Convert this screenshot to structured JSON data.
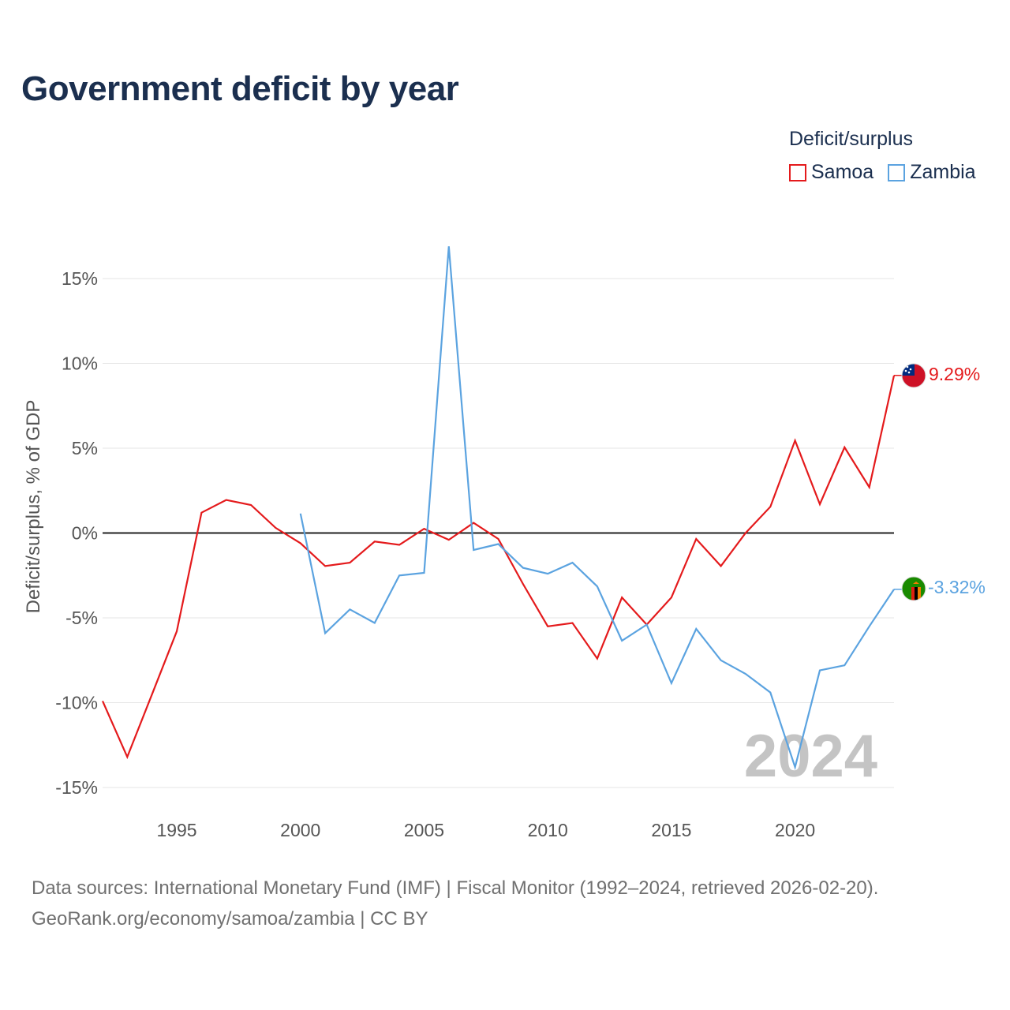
{
  "title": "Government deficit by year",
  "legend": {
    "title": "Deficit/surplus",
    "items": [
      {
        "label": "Samoa",
        "color": "#e41a1c"
      },
      {
        "label": "Zambia",
        "color": "#5ba3e0"
      }
    ]
  },
  "chart_data": {
    "type": "line",
    "title": "Government deficit by year",
    "ylabel": "Deficit/surplus, % of GDP",
    "xlabel": "",
    "xlim": [
      1992,
      2024
    ],
    "ylim": [
      -15,
      17
    ],
    "yticks": [
      15,
      10,
      5,
      0,
      -5,
      -10,
      -15
    ],
    "ytick_labels": [
      "15%",
      "10%",
      "5%",
      "0%",
      "-5%",
      "-10%",
      "-15%"
    ],
    "xticks": [
      1995,
      2000,
      2005,
      2010,
      2015,
      2020
    ],
    "xtick_labels": [
      "1995",
      "2000",
      "2005",
      "2010",
      "2015",
      "2020"
    ],
    "year_watermark": "2024",
    "series": [
      {
        "name": "Samoa",
        "color": "#e41a1c",
        "end_label": "9.29%",
        "flag": "samoa-flag",
        "x": [
          1992,
          1993,
          1994,
          1995,
          1996,
          1997,
          1998,
          1999,
          2000,
          2001,
          2002,
          2003,
          2004,
          2005,
          2006,
          2007,
          2008,
          2009,
          2010,
          2011,
          2012,
          2013,
          2014,
          2015,
          2016,
          2017,
          2018,
          2019,
          2020,
          2021,
          2022,
          2023,
          2024
        ],
        "values": [
          -9.9,
          -13.2,
          -9.5,
          -5.8,
          1.2,
          1.95,
          1.65,
          0.3,
          -0.6,
          -1.95,
          -1.75,
          -0.5,
          -0.7,
          0.25,
          -0.4,
          0.6,
          -0.35,
          -3.0,
          -5.5,
          -5.3,
          -7.4,
          -3.8,
          -5.4,
          -3.8,
          -0.35,
          -1.95,
          0.0,
          1.55,
          5.45,
          1.7,
          5.05,
          2.7,
          9.29
        ]
      },
      {
        "name": "Zambia",
        "color": "#5ba3e0",
        "end_label": "-3.32%",
        "flag": "zambia-flag",
        "x": [
          2000,
          2001,
          2002,
          2003,
          2004,
          2005,
          2006,
          2007,
          2008,
          2009,
          2010,
          2011,
          2012,
          2013,
          2014,
          2015,
          2016,
          2017,
          2018,
          2019,
          2020,
          2021,
          2022,
          2023,
          2024
        ],
        "values": [
          1.15,
          -5.9,
          -4.5,
          -5.3,
          -2.5,
          -2.35,
          16.9,
          -1.0,
          -0.65,
          -2.05,
          -2.4,
          -1.75,
          -3.15,
          -6.35,
          -5.4,
          -8.85,
          -5.65,
          -7.5,
          -8.3,
          -9.4,
          -13.8,
          -8.1,
          -7.8,
          -5.5,
          -3.32
        ]
      }
    ]
  },
  "footer": {
    "line1": "Data sources: International Monetary Fund (IMF) | Fiscal Monitor (1992–2024, retrieved 2026-02-20).",
    "line2": "GeoRank.org/economy/samoa/zambia | CC BY"
  }
}
